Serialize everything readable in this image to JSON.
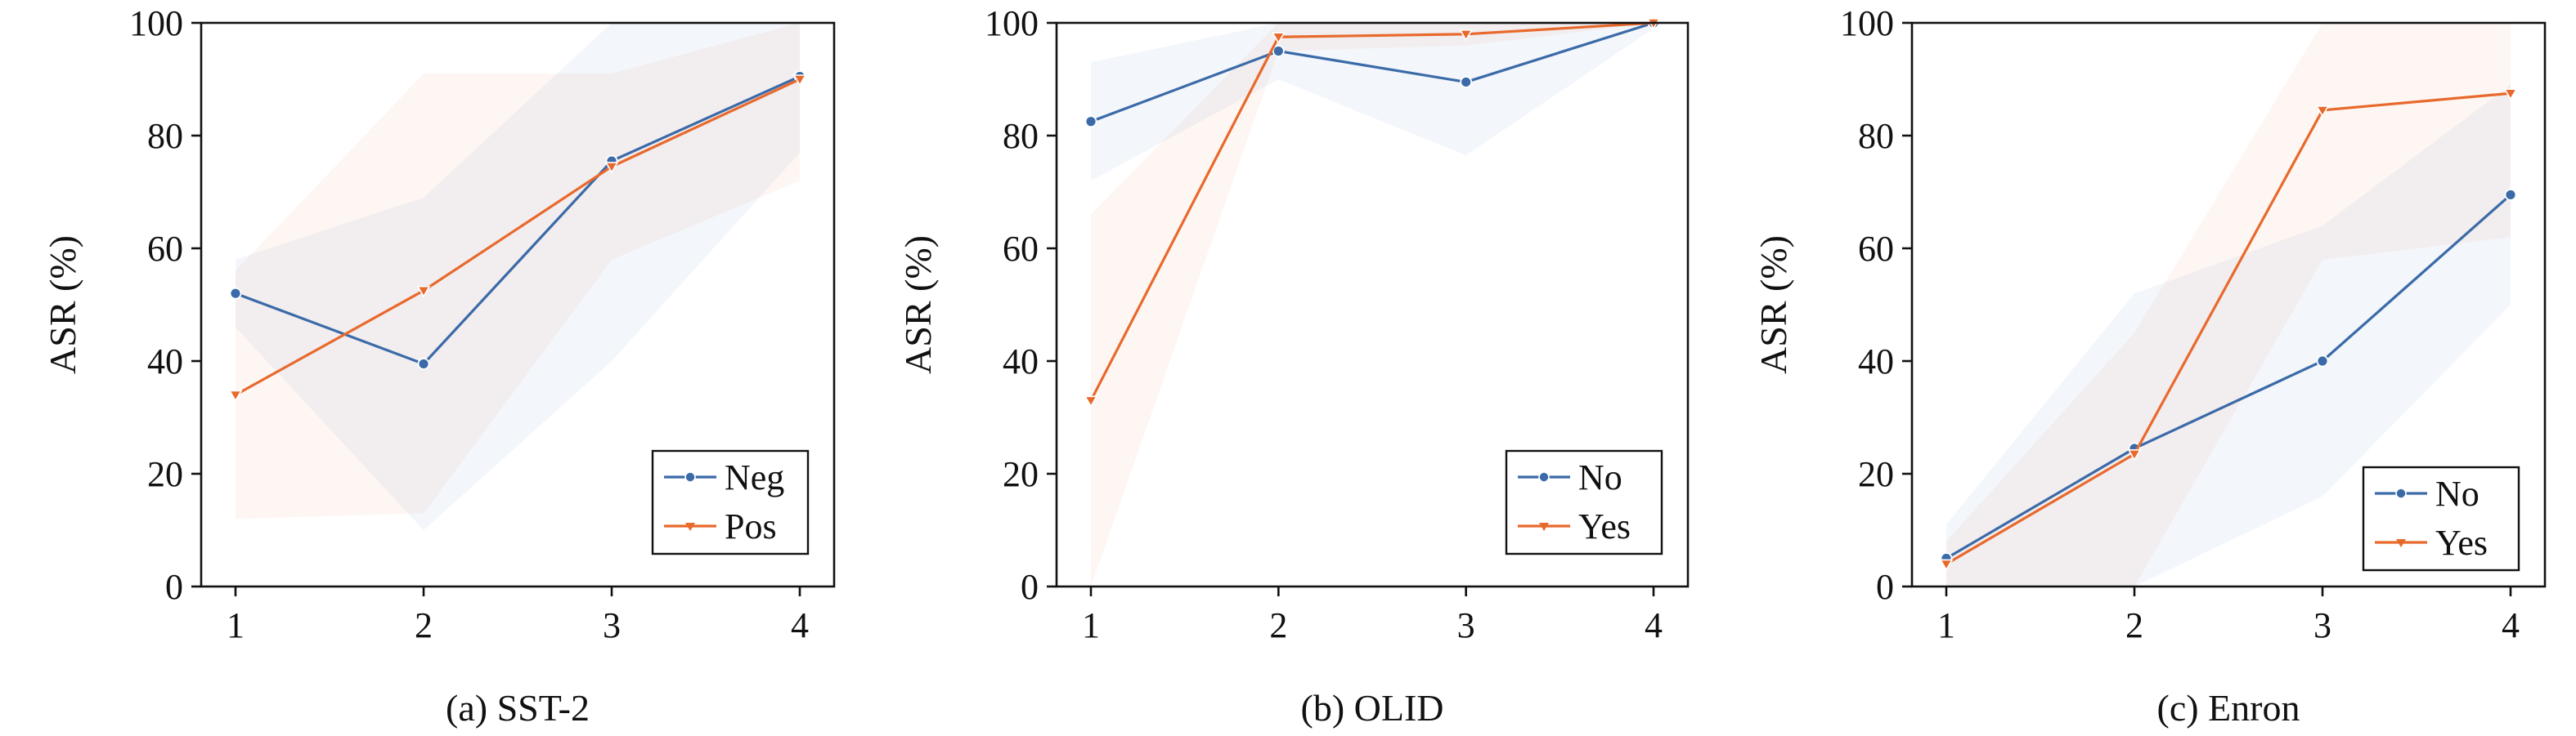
{
  "colors": {
    "series_1": "#3a6aa8",
    "series_2": "#e8692c",
    "axis": "#111111"
  },
  "chart_data": [
    {
      "type": "line",
      "caption": "(a) SST-2",
      "ylabel": "ASR (%)",
      "x": [
        1,
        2,
        3,
        4
      ],
      "xticks": [
        "1",
        "2",
        "3",
        "4"
      ],
      "yticks": [
        "0",
        "20",
        "40",
        "60",
        "80",
        "100"
      ],
      "ylim": [
        0,
        100
      ],
      "grid": false,
      "legend_position": "lower-right",
      "series": [
        {
          "name": "Neg",
          "marker": "circle",
          "values": [
            52,
            39.5,
            75.5,
            90.5
          ],
          "band_low": [
            46,
            10,
            40,
            77
          ],
          "band_high": [
            58,
            69,
            100,
            100
          ]
        },
        {
          "name": "Pos",
          "marker": "triangle-down",
          "values": [
            34,
            52.5,
            74.5,
            90
          ],
          "band_low": [
            12,
            13,
            58,
            72
          ],
          "band_high": [
            56,
            91,
            91,
            100
          ]
        }
      ]
    },
    {
      "type": "line",
      "caption": "(b) OLID",
      "ylabel": "ASR (%)",
      "x": [
        1,
        2,
        3,
        4
      ],
      "xticks": [
        "1",
        "2",
        "3",
        "4"
      ],
      "yticks": [
        "0",
        "20",
        "40",
        "60",
        "80",
        "100"
      ],
      "ylim": [
        0,
        100
      ],
      "grid": false,
      "legend_position": "lower-right",
      "series": [
        {
          "name": "No",
          "marker": "circle",
          "values": [
            82.5,
            95,
            89.5,
            100
          ],
          "band_low": [
            72,
            90,
            76.5,
            99
          ],
          "band_high": [
            93,
            100,
            100,
            100
          ]
        },
        {
          "name": "Yes",
          "marker": "triangle-down",
          "values": [
            33,
            97.5,
            98,
            100
          ],
          "band_low": [
            0,
            95,
            96,
            100
          ],
          "band_high": [
            66,
            100,
            100,
            100
          ]
        }
      ]
    },
    {
      "type": "line",
      "caption": "(c) Enron",
      "ylabel": "ASR (%)",
      "x": [
        1,
        2,
        3,
        4
      ],
      "xticks": [
        "1",
        "2",
        "3",
        "4"
      ],
      "yticks": [
        "0",
        "20",
        "40",
        "60",
        "80",
        "100"
      ],
      "ylim": [
        0,
        100
      ],
      "grid": false,
      "legend_position": "lower-right",
      "series": [
        {
          "name": "No",
          "marker": "circle",
          "values": [
            5,
            24.5,
            40,
            69.5
          ],
          "band_low": [
            0,
            0,
            16,
            50
          ],
          "band_high": [
            11,
            52,
            64,
            89
          ]
        },
        {
          "name": "Yes",
          "marker": "triangle-down",
          "values": [
            4,
            23.5,
            84.5,
            87.5
          ],
          "band_low": [
            0,
            0,
            58,
            62
          ],
          "band_high": [
            8,
            45,
            100,
            100
          ]
        }
      ]
    }
  ]
}
